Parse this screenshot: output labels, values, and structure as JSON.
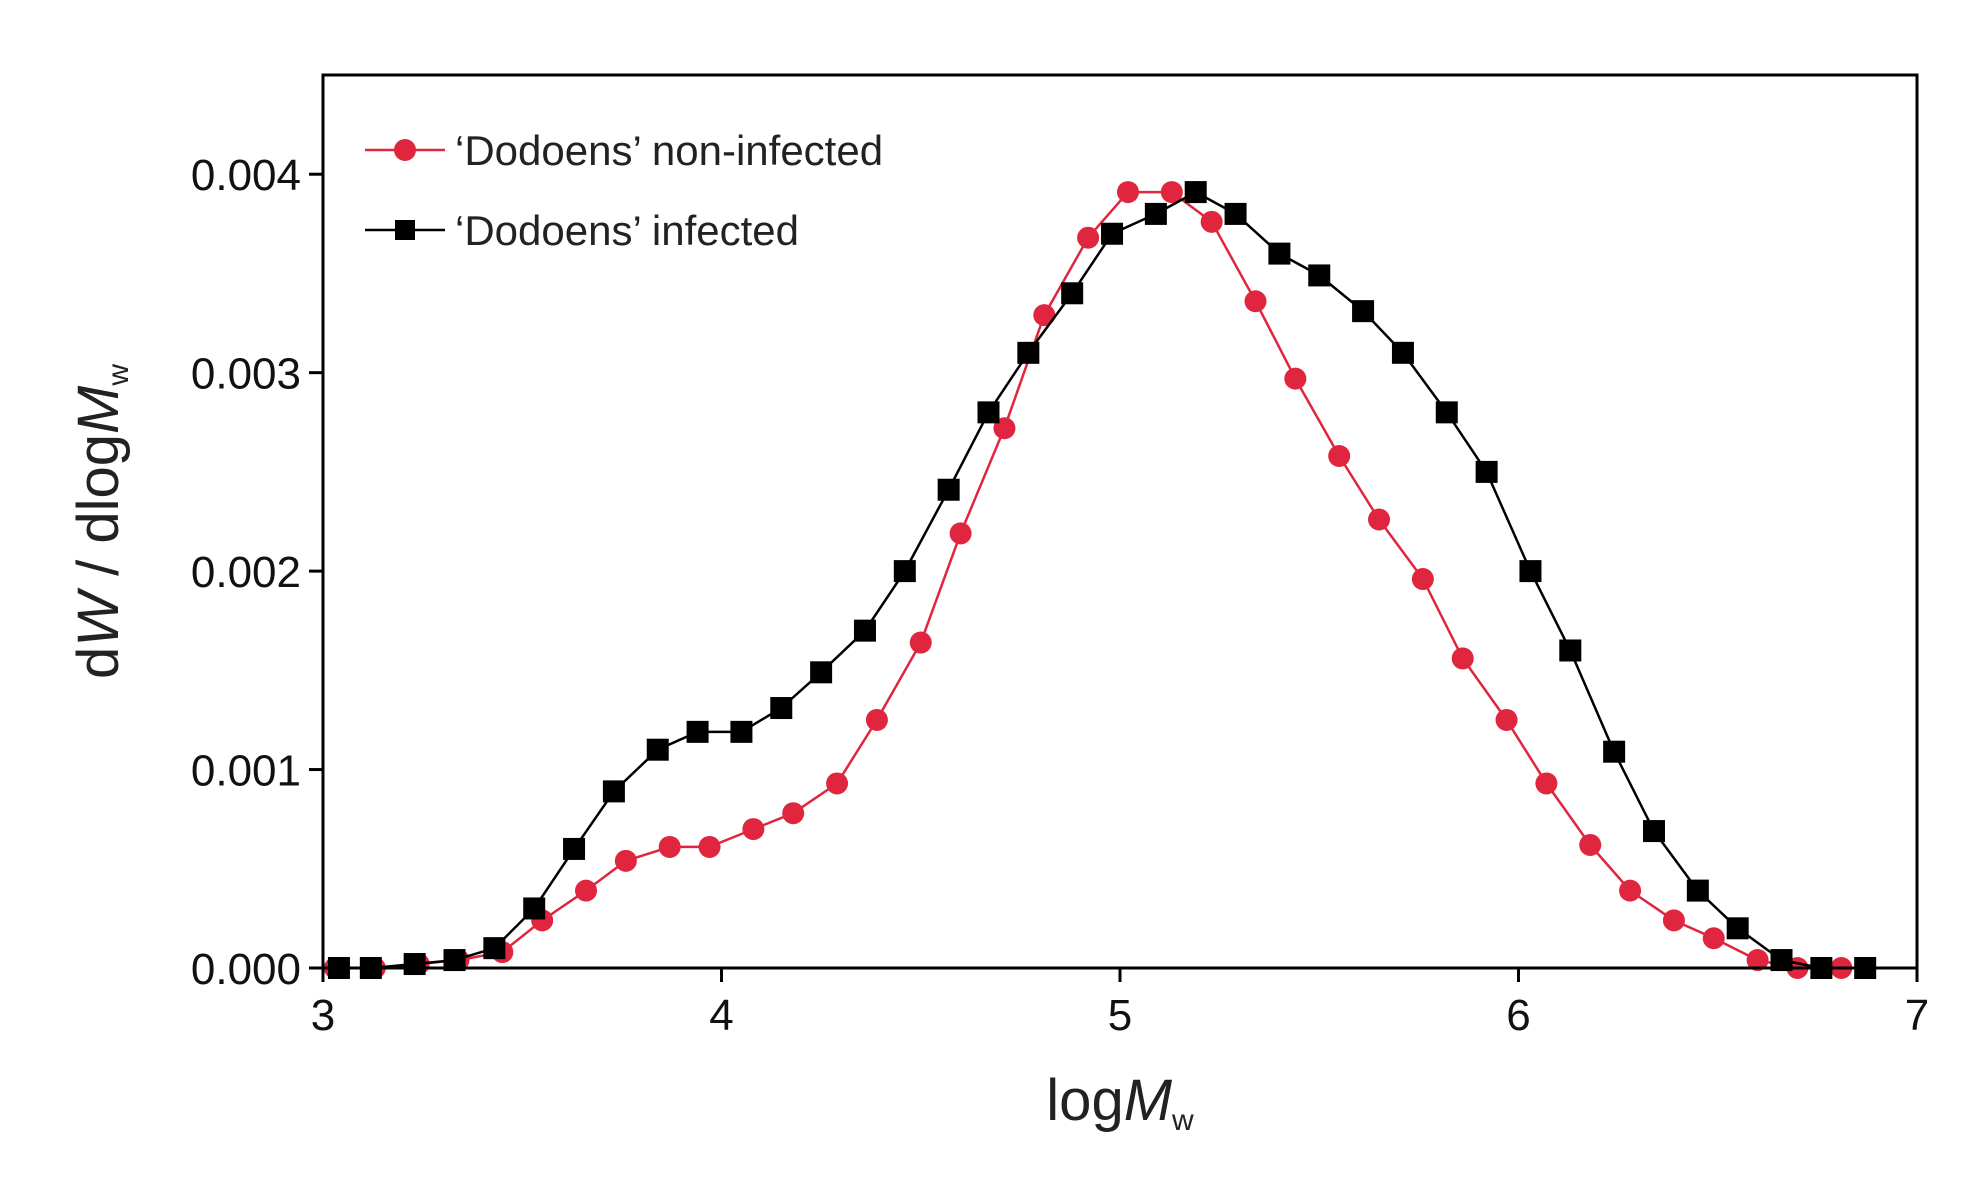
{
  "chart_data": {
    "type": "line",
    "title": "",
    "xlabel": {
      "main": "log",
      "italic": "M",
      "sub": "w"
    },
    "ylabel": {
      "prefix": "d",
      "italic1": "W",
      "middle": " / dlog",
      "italic2": "M",
      "sub": "w"
    },
    "xlim": [
      3,
      7
    ],
    "ylim": [
      0,
      0.0045
    ],
    "x_ticks": [
      {
        "value": 3,
        "label": "3"
      },
      {
        "value": 4,
        "label": "4"
      },
      {
        "value": 5,
        "label": "5"
      },
      {
        "value": 6,
        "label": "6"
      },
      {
        "value": 7,
        "label": "7"
      }
    ],
    "y_ticks": [
      {
        "value": 0.0,
        "label": "0.000"
      },
      {
        "value": 0.001,
        "label": "0.001"
      },
      {
        "value": 0.002,
        "label": "0.002"
      },
      {
        "value": 0.003,
        "label": "0.003"
      },
      {
        "value": 0.004,
        "label": "0.004"
      }
    ],
    "grid": false,
    "legend_position": "top-left",
    "series": [
      {
        "name": "‘Dodoens’ non-infected",
        "color": "#e0263f",
        "marker": "circle",
        "x": [
          3.03,
          3.13,
          3.24,
          3.34,
          3.45,
          3.55,
          3.66,
          3.76,
          3.87,
          3.97,
          4.08,
          4.18,
          4.29,
          4.39,
          4.5,
          4.6,
          4.71,
          4.81,
          4.92,
          5.02,
          5.13,
          5.23,
          5.34,
          5.44,
          5.55,
          5.65,
          5.76,
          5.86,
          5.97,
          6.07,
          6.18,
          6.28,
          6.39,
          6.49,
          6.6,
          6.7,
          6.81
        ],
        "y": [
          0.0,
          0.0,
          2e-05,
          4e-05,
          8e-05,
          0.00024,
          0.00039,
          0.00054,
          0.00061,
          0.00061,
          0.0007,
          0.00078,
          0.00093,
          0.00125,
          0.00164,
          0.00219,
          0.00272,
          0.00329,
          0.00368,
          0.00391,
          0.00391,
          0.00376,
          0.00336,
          0.00297,
          0.00258,
          0.00226,
          0.00196,
          0.00156,
          0.00125,
          0.00093,
          0.00062,
          0.00039,
          0.00024,
          0.00015,
          4e-05,
          0.0,
          0.0
        ]
      },
      {
        "name": "‘Dodoens’ infected",
        "color": "#000000",
        "marker": "square",
        "x": [
          3.04,
          3.12,
          3.23,
          3.33,
          3.43,
          3.53,
          3.63,
          3.73,
          3.84,
          3.94,
          4.05,
          4.15,
          4.25,
          4.36,
          4.46,
          4.57,
          4.67,
          4.77,
          4.88,
          4.98,
          5.09,
          5.19,
          5.29,
          5.4,
          5.5,
          5.61,
          5.71,
          5.82,
          5.92,
          6.03,
          6.13,
          6.24,
          6.34,
          6.45,
          6.55,
          6.66,
          6.76,
          6.87
        ],
        "y": [
          0.0,
          0.0,
          2e-05,
          4e-05,
          0.0001,
          0.0003,
          0.0006,
          0.00089,
          0.0011,
          0.00119,
          0.00119,
          0.00131,
          0.00149,
          0.0017,
          0.002,
          0.00241,
          0.0028,
          0.0031,
          0.0034,
          0.0037,
          0.0038,
          0.00391,
          0.0038,
          0.0036,
          0.00349,
          0.00331,
          0.0031,
          0.0028,
          0.0025,
          0.002,
          0.0016,
          0.00109,
          0.00069,
          0.00039,
          0.0002,
          4e-05,
          0.0,
          0.0
        ]
      }
    ]
  }
}
